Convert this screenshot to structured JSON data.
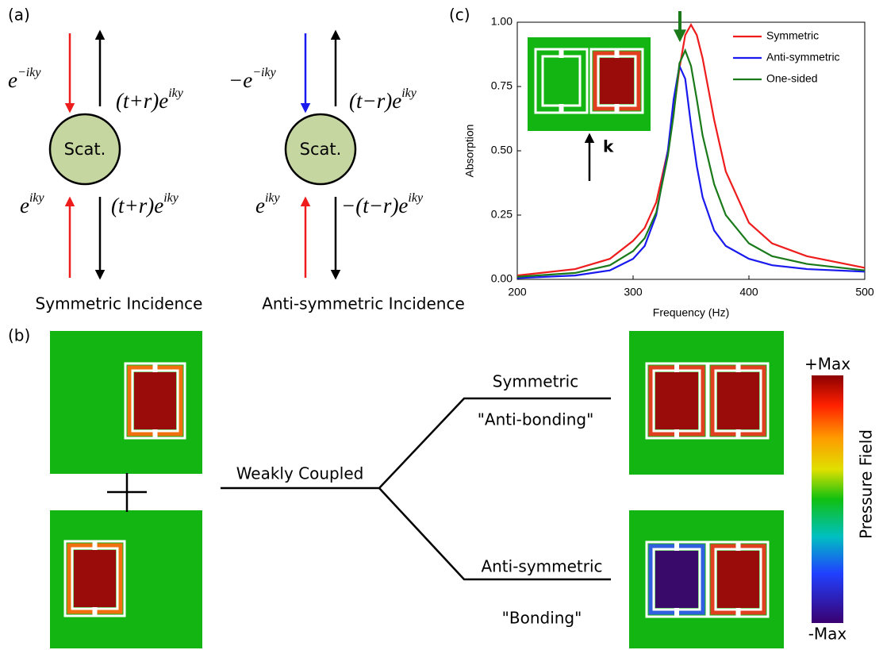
{
  "panel_a": {
    "label": "(a)",
    "symmetric": {
      "scatterer": "Scat.",
      "caption": "Symmetric Incidence",
      "top_in": {
        "base": "e",
        "sup": "−iky"
      },
      "top_out": {
        "base": "(t+r)e",
        "sup": "iky"
      },
      "bottom_in": {
        "base": "e",
        "sup": "iky"
      },
      "bottom_out": {
        "base": "(t+r)e",
        "sup": "iky"
      }
    },
    "anti_symmetric": {
      "scatterer": "Scat.",
      "caption": "Anti-symmetric Incidence",
      "top_in": {
        "base": "−e",
        "sup": "−iky"
      },
      "top_out": {
        "base": "(t−r)e",
        "sup": "iky"
      },
      "bottom_in": {
        "base": "e",
        "sup": "iky"
      },
      "bottom_out": {
        "base": "−(t−r)e",
        "sup": "iky"
      }
    }
  },
  "panel_b": {
    "label": "(b)",
    "coupling": "Weakly Coupled",
    "upper_branch": {
      "name": "Symmetric",
      "mode": "\"Anti-bonding\""
    },
    "lower_branch": {
      "name": "Anti-symmetric",
      "mode": "\"Bonding\""
    },
    "colorbar": {
      "title": "Pressure Field",
      "max": "+Max",
      "min": "-Max"
    }
  },
  "chart_data": {
    "type": "line",
    "panel_label": "(c)",
    "x_label": "Frequency (Hz)",
    "y_label": "Absorption",
    "inset_label": "k",
    "x": [
      200,
      250,
      280,
      300,
      310,
      320,
      330,
      335,
      340,
      345,
      350,
      355,
      360,
      370,
      380,
      400,
      420,
      450,
      500
    ],
    "series": [
      {
        "name": "Symmetric",
        "color": "#ee1c1c",
        "values": [
          0.015,
          0.04,
          0.08,
          0.15,
          0.2,
          0.3,
          0.5,
          0.65,
          0.82,
          0.95,
          0.99,
          0.95,
          0.86,
          0.62,
          0.42,
          0.22,
          0.14,
          0.09,
          0.045
        ]
      },
      {
        "name": "Anti-symmetric",
        "color": "#1a1aee",
        "values": [
          0.005,
          0.015,
          0.035,
          0.08,
          0.13,
          0.25,
          0.5,
          0.7,
          0.83,
          0.78,
          0.6,
          0.44,
          0.32,
          0.19,
          0.13,
          0.08,
          0.055,
          0.04,
          0.03
        ]
      },
      {
        "name": "One-sided",
        "color": "#1a7a1a",
        "values": [
          0.01,
          0.025,
          0.055,
          0.11,
          0.16,
          0.26,
          0.48,
          0.64,
          0.84,
          0.89,
          0.83,
          0.7,
          0.56,
          0.37,
          0.25,
          0.14,
          0.09,
          0.06,
          0.035
        ]
      }
    ],
    "xlim": [
      200,
      500
    ],
    "xticks": [
      200,
      300,
      400,
      500
    ],
    "ylim": [
      0,
      1
    ],
    "yticks": [
      {
        "value": 0,
        "label": "0.00"
      },
      0.25,
      {
        "value": 0.5,
        "label": "0.50"
      },
      0.75,
      {
        "value": 1,
        "label": "1.00"
      }
    ]
  }
}
